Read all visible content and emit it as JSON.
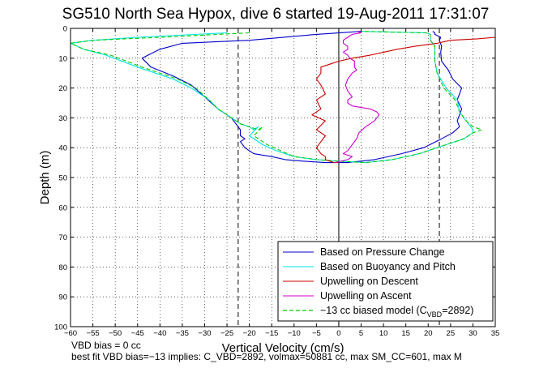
{
  "chart_data": {
    "type": "line",
    "title": "SG510 North Sea Hypox, dive 6 started 19-Aug-2011 17:31:07",
    "xlabel": "Vertical Velocity (cm/s)",
    "ylabel": "Depth (m)",
    "xlim": [
      -60,
      35
    ],
    "ylim": [
      0,
      100
    ],
    "y_reversed": true,
    "x_ticks": [
      -60,
      -55,
      -50,
      -45,
      -40,
      -35,
      -30,
      -25,
      -20,
      -15,
      -10,
      -5,
      0,
      5,
      10,
      15,
      20,
      25,
      30,
      35
    ],
    "y_ticks": [
      0,
      10,
      20,
      30,
      40,
      50,
      60,
      70,
      80,
      90,
      100
    ],
    "x_tick_labels": [
      "−60",
      "−55",
      "−50",
      "−45",
      "−40",
      "−35",
      "−30",
      "−25",
      "−20",
      "−15",
      "−10",
      "−5",
      "0",
      "5",
      "10",
      "15",
      "20",
      "25",
      "30",
      "35"
    ],
    "y_tick_labels": [
      "0",
      "10",
      "20",
      "30",
      "40",
      "50",
      "60",
      "70",
      "80",
      "90",
      "100"
    ],
    "grid": true,
    "legend_position": "bottom-right",
    "series": [
      {
        "name": "Based on Pressure Change",
        "color": "#0000cc",
        "style": "solid",
        "x": [
          5,
          -5,
          -20,
          -35,
          -40,
          -44,
          -42,
          -37,
          -33,
          -30,
          -27,
          -24,
          -23,
          -22,
          -22,
          -21,
          -22,
          -21,
          -20,
          -19,
          -17,
          -15,
          -12,
          -8,
          -3,
          2,
          8,
          14,
          19,
          23,
          25.5,
          27,
          26.5,
          27.5,
          26.5,
          27.5,
          25.5,
          24.5,
          23,
          22.8,
          23,
          22.5,
          22.8,
          21.5,
          21.5,
          21
        ],
        "y": [
          1,
          2,
          4,
          5,
          7,
          10,
          13,
          16,
          19,
          23,
          27,
          30,
          32,
          34,
          36,
          37,
          38,
          40,
          41,
          42,
          42.5,
          43,
          44,
          44.5,
          45,
          45,
          44,
          42,
          40,
          37,
          35,
          33,
          31,
          27,
          24,
          20,
          17,
          14,
          11,
          8,
          6,
          4,
          3,
          2,
          1.5,
          1
        ]
      },
      {
        "name": "Based on Buoyancy and Pitch",
        "color": "#00e5e5",
        "style": "solid",
        "x": [
          -25,
          -45,
          -55,
          -60,
          -57,
          -52,
          -45,
          -37,
          -33,
          -29,
          -27,
          -24,
          -22,
          -20,
          -19,
          -18,
          -20,
          -17,
          -14,
          -10,
          -5,
          0,
          6,
          12,
          18,
          24,
          28,
          30,
          30,
          29.5,
          28.5,
          27,
          26.5,
          24,
          22,
          21.5,
          21.5,
          20.5,
          20.5,
          19.5,
          5
        ],
        "y": [
          1.5,
          3,
          4,
          5,
          7,
          9,
          13,
          17,
          20,
          24,
          27,
          30,
          32,
          33,
          34,
          33,
          36,
          39,
          41,
          43,
          44,
          44.5,
          45,
          44,
          42,
          39,
          37,
          35,
          34,
          33,
          31,
          28,
          24,
          20,
          15,
          11,
          6,
          4,
          2,
          1.5,
          1
        ]
      },
      {
        "name": "Upwelling on Descent",
        "color": "#cc0000",
        "style": "solid",
        "x": [
          35,
          31,
          25,
          22,
          17,
          13,
          10,
          7,
          3,
          0,
          -2,
          -4,
          -4,
          -5,
          -4,
          -3,
          -5,
          -4,
          -6,
          -3,
          -5,
          -3,
          -4,
          -5,
          -4,
          -3,
          -3,
          -2,
          -1,
          0
        ],
        "y": [
          3,
          3.5,
          4,
          5,
          6,
          7,
          8,
          9,
          10,
          11,
          12,
          13,
          15,
          17,
          19,
          22,
          24,
          27,
          29,
          31,
          34,
          36,
          38,
          40,
          42,
          43,
          44,
          44.5,
          45,
          45
        ]
      },
      {
        "name": "Upwelling on Ascent",
        "color": "#cc00cc",
        "style": "solid",
        "x": [
          -1,
          2,
          3,
          1,
          2,
          3,
          4,
          4.5,
          6,
          8,
          9,
          8.5,
          7,
          3,
          2,
          2,
          3,
          2,
          1.5,
          2,
          3,
          4,
          3.5,
          3.5,
          2.5,
          2,
          1,
          2,
          2,
          1,
          1,
          2,
          3,
          5,
          4
        ],
        "y": [
          45,
          44,
          43,
          42,
          41,
          39,
          37,
          35,
          33,
          31,
          29,
          28,
          27,
          26,
          25,
          24,
          23,
          21,
          19,
          17,
          15,
          14,
          13,
          11,
          10,
          9,
          8,
          7,
          6,
          5,
          4,
          3,
          2,
          1.5,
          1
        ]
      },
      {
        "name": "−13 cc biased model (C_VBD=2892)",
        "color": "#00cc00",
        "style": "dashed",
        "x": [
          -20,
          -40,
          -55,
          -60,
          -57,
          -51,
          -44,
          -36,
          -32,
          -29,
          -27,
          -24,
          -22,
          -20,
          -18,
          -17,
          -19,
          -16,
          -13,
          -10,
          -5,
          0,
          6,
          12,
          18,
          24,
          28,
          30,
          32,
          30,
          28.5,
          27,
          26,
          23.5,
          22,
          21.5,
          21.5,
          20.5,
          20.5,
          19.5,
          5
        ],
        "y": [
          1.5,
          3,
          4,
          5,
          7,
          9,
          13,
          17,
          20,
          24,
          27,
          30,
          32,
          33,
          34,
          33,
          36,
          39,
          41,
          43,
          44,
          44.5,
          45,
          44,
          42,
          39,
          37,
          35,
          34,
          33,
          31,
          28,
          24,
          20,
          15,
          11,
          6,
          4,
          2,
          1.5,
          1
        ]
      }
    ],
    "reference_lines": [
      {
        "x": -22.5,
        "style": "dashed",
        "color": "#000000"
      },
      {
        "x": 22.5,
        "style": "dashed",
        "color": "#000000"
      },
      {
        "x": 0,
        "style": "solid",
        "color": "#000000"
      }
    ],
    "legend": {
      "entries": [
        {
          "label": "Based on Pressure Change"
        },
        {
          "label": "Based on Buoyancy and Pitch"
        },
        {
          "label": "Upwelling on Descent"
        },
        {
          "label": "Upwelling on Ascent"
        },
        {
          "label_prefix": "−13 cc biased model (C",
          "label_sub": "VBD",
          "label_suffix": "=2892)"
        }
      ]
    },
    "annotations": {
      "vbd_bias": "VBD bias = 0 cc",
      "best_fit": "best fit VBD bias=−13 implies: C_VBD=2892, volmax=50881 cc, max SM_CC=601, max M"
    }
  }
}
